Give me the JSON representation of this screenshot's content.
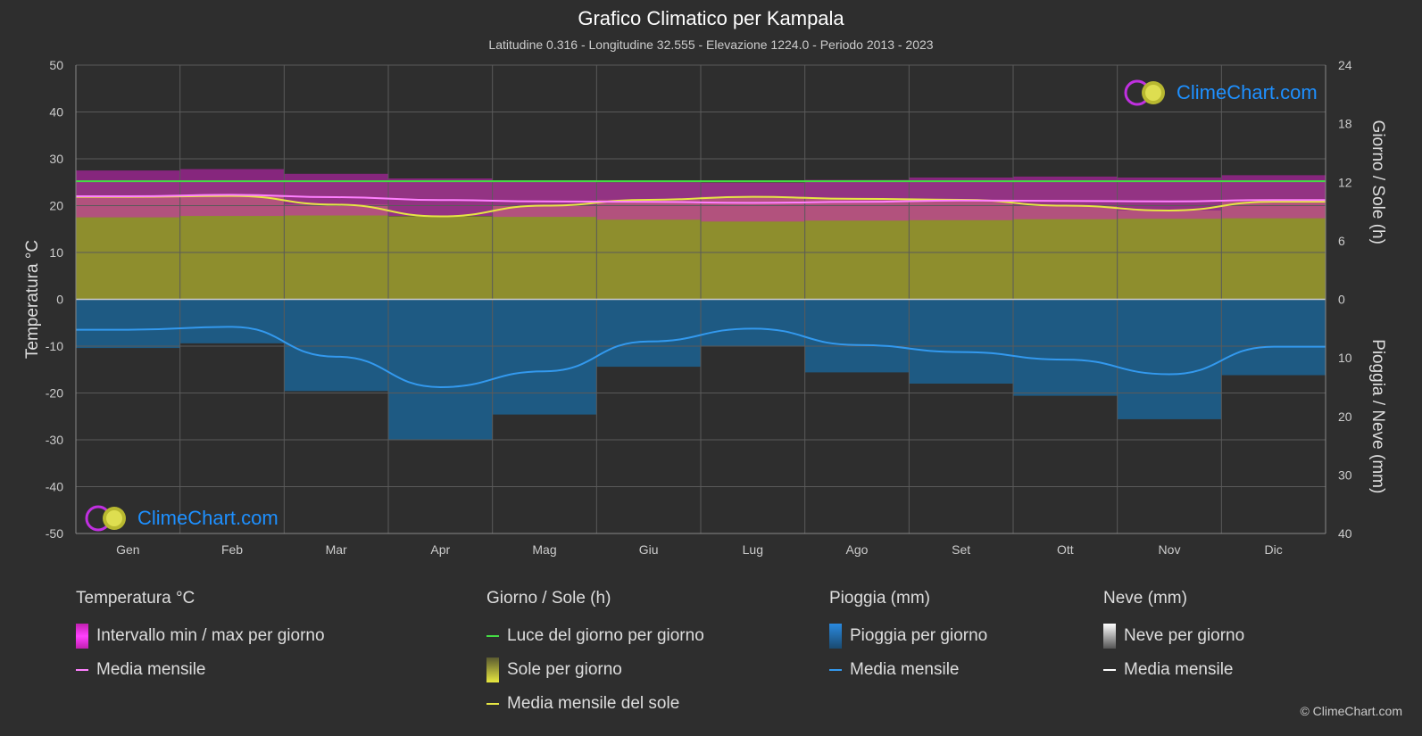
{
  "title": "Grafico Climatico per Kampala",
  "subtitle": "Latitudine 0.316 - Longitudine 32.555 - Elevazione 1224.0 - Periodo 2013 - 2023",
  "brand": "ClimeChart.com",
  "copyright": "© ClimeChart.com",
  "axes": {
    "left_label": "Temperatura °C",
    "right_top_label": "Giorno / Sole (h)",
    "right_bottom_label": "Pioggia / Neve (mm)"
  },
  "legend": {
    "temp": {
      "title": "Temperatura °C",
      "range": "Intervallo min / max per giorno",
      "mean": "Media mensile"
    },
    "sun": {
      "title": "Giorno / Sole (h)",
      "daylight": "Luce del giorno per giorno",
      "sun": "Sole per giorno",
      "mean": "Media mensile del sole"
    },
    "rain": {
      "title": "Pioggia (mm)",
      "rain": "Pioggia per giorno",
      "mean": "Media mensile"
    },
    "snow": {
      "title": "Neve (mm)",
      "snow": "Neve per giorno",
      "mean": "Media mensile"
    }
  },
  "colors": {
    "background": "#2e2e2e",
    "temp_range": "#d020c0",
    "temp_mean": "#ff80ff",
    "daylight": "#44dd44",
    "sun_fill": "#9a9a2c",
    "sun_mean": "#e6e644",
    "rain_fill": "#1a6aa0",
    "rain_mean": "#3399ee",
    "snow_mean": "#ffffff"
  },
  "chart_data": {
    "type": "line",
    "categories": [
      "Gen",
      "Feb",
      "Mar",
      "Apr",
      "Mag",
      "Giu",
      "Lug",
      "Ago",
      "Set",
      "Ott",
      "Nov",
      "Dic"
    ],
    "left_axis": {
      "ylim": [
        -50,
        50
      ],
      "ticks": [
        50,
        40,
        30,
        20,
        10,
        0,
        -10,
        -20,
        -30,
        -40,
        -50
      ]
    },
    "right_top_axis": {
      "ylim": [
        0,
        24
      ],
      "ticks": [
        24,
        18,
        12,
        6,
        0
      ]
    },
    "right_bottom_axis": {
      "ylim": [
        0,
        40
      ],
      "ticks": [
        0,
        10,
        20,
        30,
        40
      ]
    },
    "series": [
      {
        "name": "Media mensile",
        "unit": "°C",
        "values": [
          22.0,
          22.3,
          21.8,
          21.2,
          20.9,
          20.8,
          20.6,
          20.8,
          21.1,
          21.0,
          20.9,
          21.2
        ]
      },
      {
        "name": "Intervallo min / max per giorno (min)",
        "unit": "°C",
        "values": [
          17.5,
          17.8,
          17.9,
          17.8,
          17.6,
          17.0,
          16.6,
          16.8,
          16.9,
          17.1,
          17.2,
          17.3
        ]
      },
      {
        "name": "Intervallo min / max per giorno (max)",
        "unit": "°C",
        "values": [
          27.5,
          27.8,
          26.8,
          25.8,
          25.4,
          25.0,
          24.9,
          25.5,
          26.0,
          26.2,
          26.0,
          26.5
        ]
      },
      {
        "name": "Luce del giorno per giorno",
        "unit": "h",
        "values": [
          12.1,
          12.1,
          12.1,
          12.1,
          12.1,
          12.1,
          12.1,
          12.1,
          12.1,
          12.1,
          12.1,
          12.1
        ]
      },
      {
        "name": "Media mensile del sole",
        "unit": "h",
        "values": [
          10.5,
          10.6,
          9.7,
          8.5,
          9.6,
          10.2,
          10.5,
          10.3,
          10.2,
          9.6,
          9.1,
          10.0
        ]
      },
      {
        "name": "Pioggia — Media mensile",
        "unit": "mm",
        "values": [
          5.2,
          4.7,
          9.8,
          15.0,
          12.3,
          7.2,
          5.0,
          7.8,
          9.0,
          10.3,
          12.8,
          8.1
        ]
      },
      {
        "name": "Neve — Media mensile",
        "unit": "mm",
        "values": [
          0,
          0,
          0,
          0,
          0,
          0,
          0,
          0,
          0,
          0,
          0,
          0
        ]
      }
    ]
  }
}
